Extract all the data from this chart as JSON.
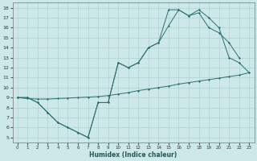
{
  "xlabel": "Humidex (Indice chaleur)",
  "bg_color": "#cce8e8",
  "grid_color": "#b0d0d0",
  "line_color": "#2a7070",
  "xlim": [
    -0.5,
    23.5
  ],
  "ylim": [
    4.5,
    18.5
  ],
  "xticks": [
    0,
    1,
    2,
    3,
    4,
    5,
    6,
    7,
    8,
    9,
    10,
    11,
    12,
    13,
    14,
    15,
    16,
    17,
    18,
    19,
    20,
    21,
    22,
    23
  ],
  "yticks": [
    5,
    6,
    7,
    8,
    9,
    10,
    11,
    12,
    13,
    14,
    15,
    16,
    17,
    18
  ],
  "line1_x": [
    0,
    1,
    2,
    3,
    4,
    5,
    6,
    7,
    8,
    9,
    10,
    11,
    12,
    13,
    14,
    15,
    16,
    17,
    18,
    19,
    20,
    21,
    22,
    23
  ],
  "line1_y": [
    9.0,
    8.9,
    8.85,
    8.85,
    8.9,
    8.95,
    9.0,
    9.05,
    9.1,
    9.2,
    9.35,
    9.5,
    9.7,
    9.85,
    10.0,
    10.15,
    10.35,
    10.5,
    10.65,
    10.8,
    10.95,
    11.1,
    11.25,
    11.5
  ],
  "line2_x": [
    0,
    1,
    2,
    3,
    4,
    5,
    6,
    7,
    8,
    9,
    10,
    11,
    12,
    13,
    14,
    15,
    16,
    17,
    18,
    19,
    20,
    21,
    22
  ],
  "line2_y": [
    9.0,
    9.0,
    8.5,
    7.5,
    6.5,
    6.0,
    5.5,
    5.0,
    8.5,
    8.5,
    12.5,
    12.0,
    12.5,
    14.0,
    14.5,
    16.2,
    17.8,
    17.2,
    17.5,
    16.0,
    15.5,
    14.5,
    13.0
  ],
  "line3_x": [
    0,
    1,
    2,
    3,
    4,
    5,
    6,
    7,
    8,
    9,
    10,
    11,
    12,
    13,
    14,
    15,
    16,
    17,
    18,
    19,
    20,
    21,
    22,
    23
  ],
  "line3_y": [
    9.0,
    9.0,
    8.5,
    7.5,
    6.5,
    6.0,
    5.5,
    5.0,
    8.5,
    8.5,
    12.5,
    12.0,
    12.5,
    14.0,
    14.5,
    17.8,
    17.8,
    17.2,
    17.8,
    17.0,
    16.0,
    13.0,
    12.5,
    11.5
  ]
}
